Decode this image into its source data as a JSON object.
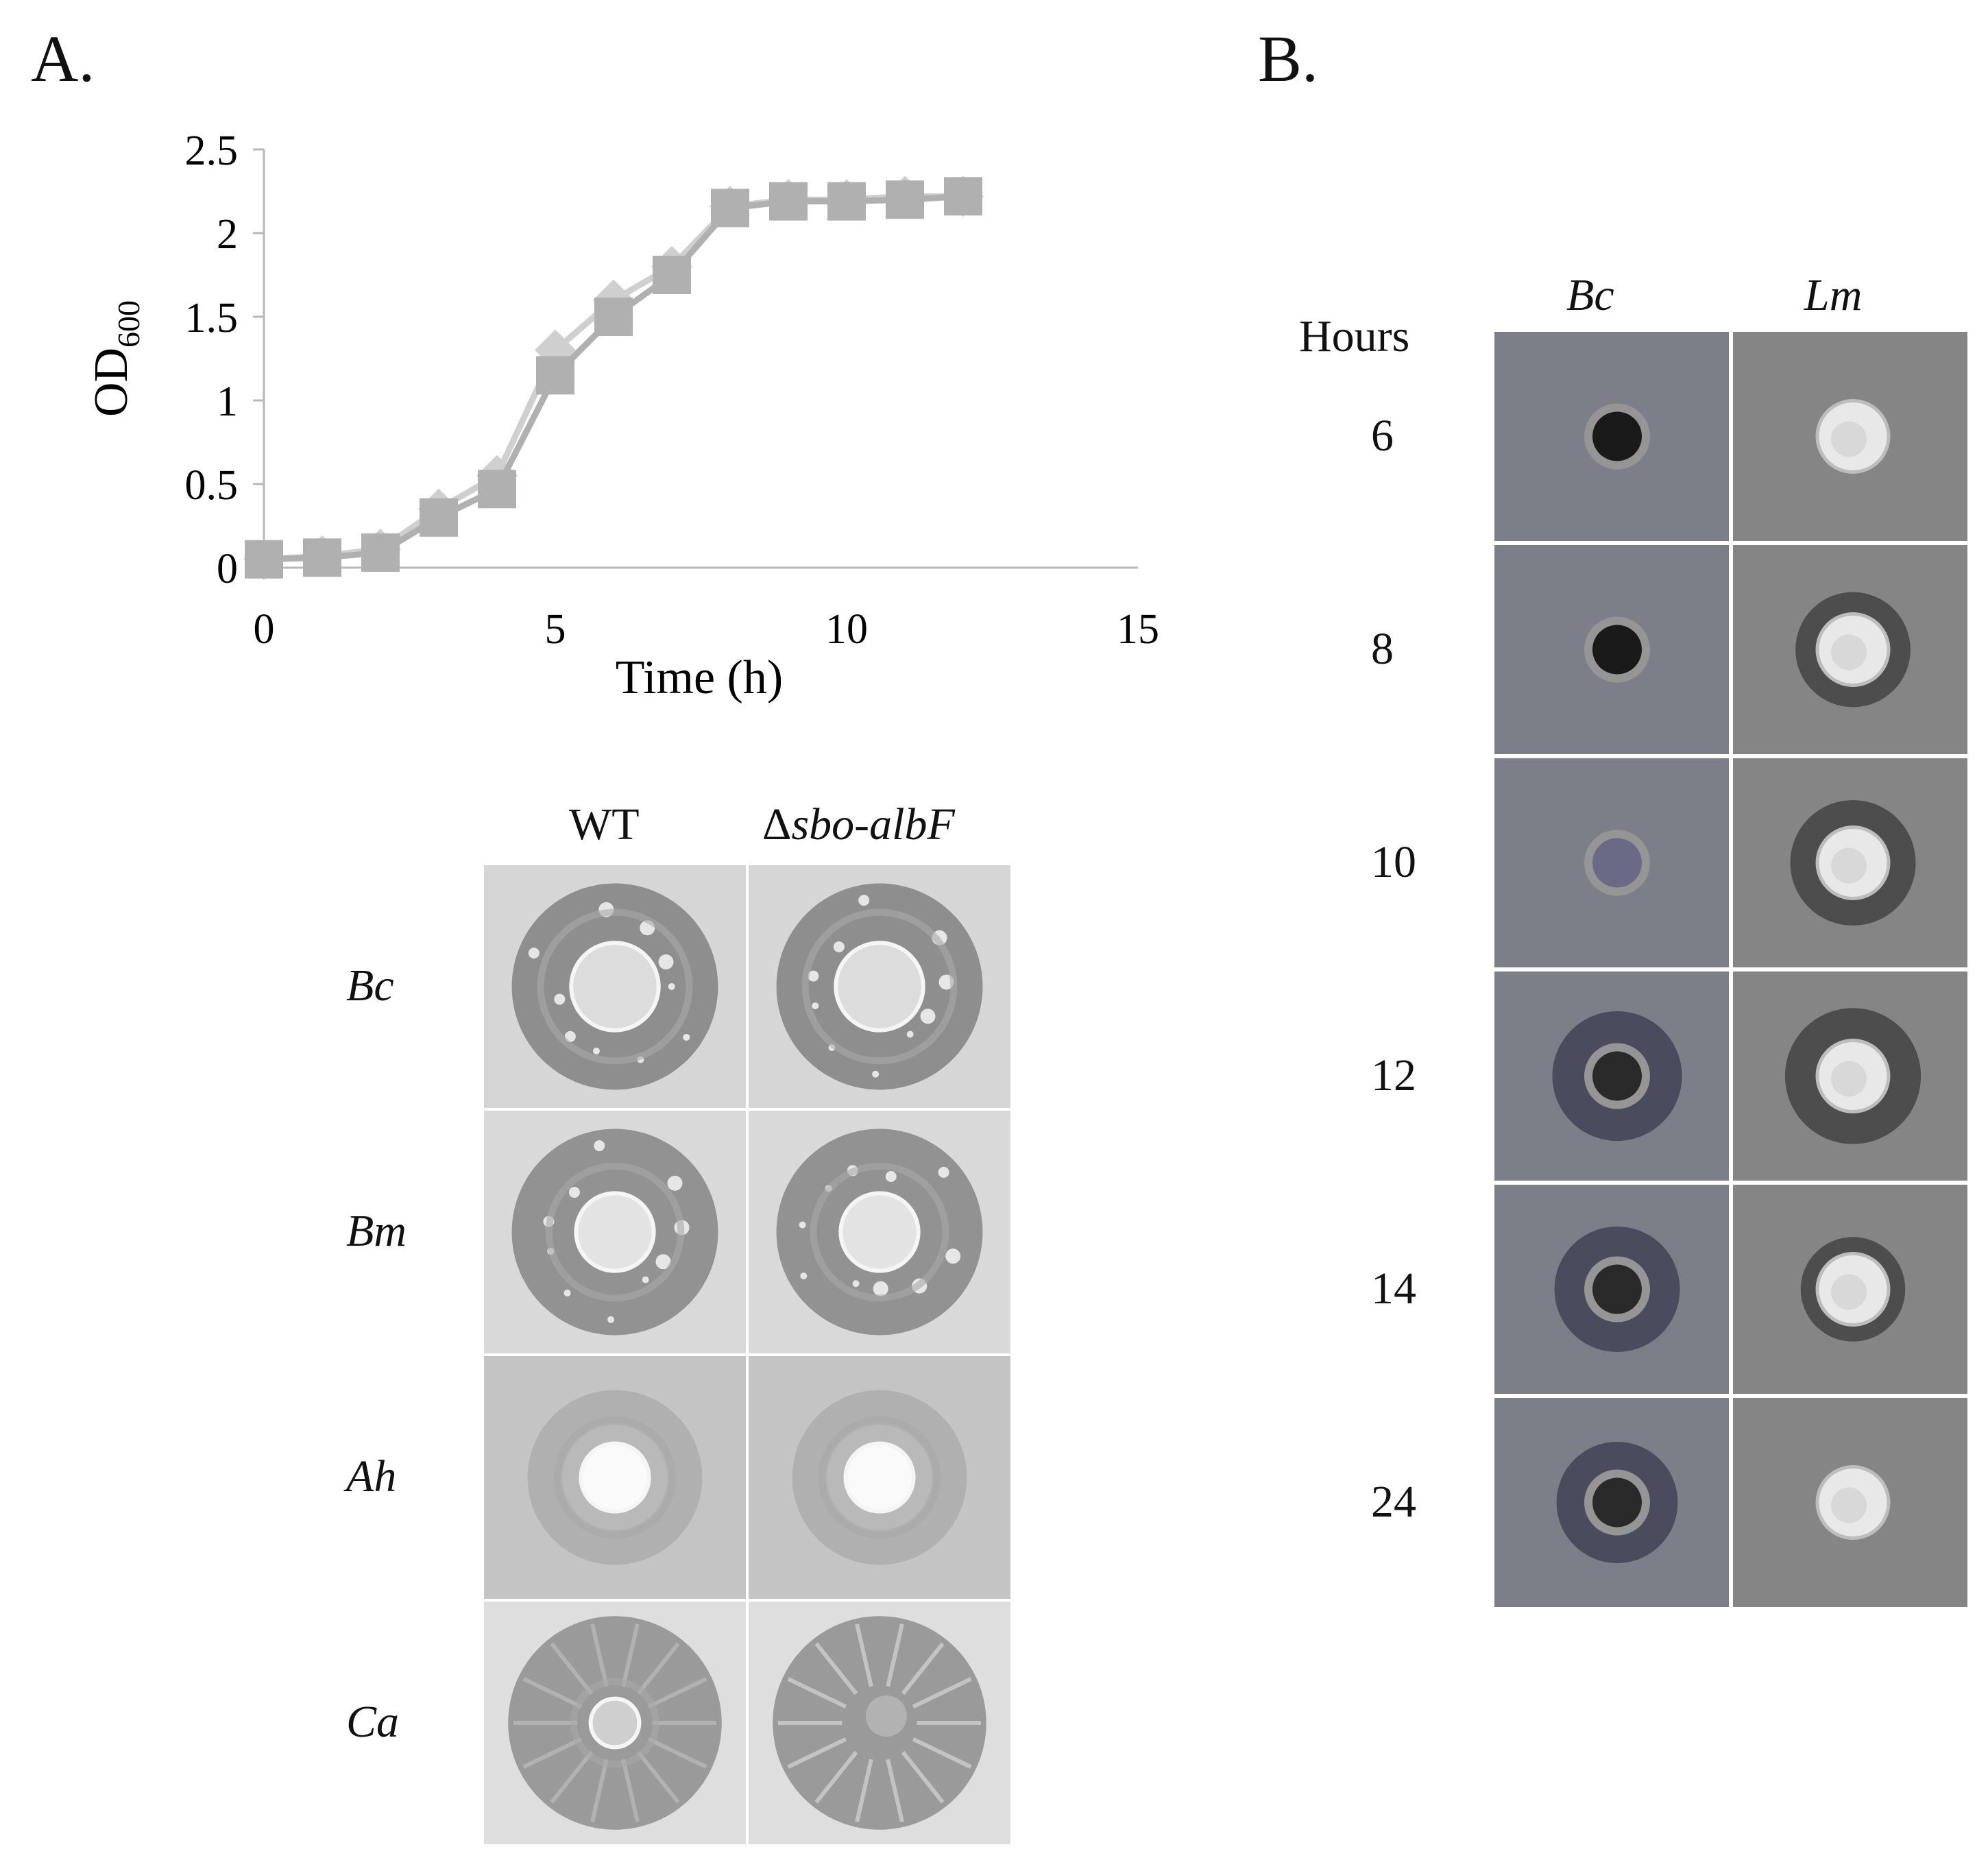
{
  "panel_a": {
    "letter": "A.",
    "chart_data": {
      "type": "line",
      "title": "",
      "xlabel": "Time (h)",
      "ylabel_main": "OD",
      "ylabel_sub": "600",
      "xlim": [
        0,
        15
      ],
      "ylim": [
        0,
        2.5
      ],
      "x_ticks": [
        "0",
        "5",
        "10",
        "15"
      ],
      "y_ticks": [
        "0",
        "0.5",
        "1",
        "1.5",
        "2",
        "2.5"
      ],
      "grid": false,
      "legend": "none",
      "series": [
        {
          "marker": "diamond",
          "color": "#cfcfcf",
          "x": [
            0,
            1,
            2,
            3,
            4,
            5,
            6,
            7,
            8,
            9,
            10,
            11,
            12
          ],
          "y": [
            0.05,
            0.07,
            0.11,
            0.35,
            0.55,
            1.3,
            1.6,
            1.8,
            2.16,
            2.2,
            2.2,
            2.22,
            2.22
          ]
        },
        {
          "marker": "square",
          "color": "#b0b0b0",
          "x": [
            0,
            1,
            2,
            3,
            4,
            5,
            6,
            7,
            8,
            9,
            10,
            11,
            12
          ],
          "y": [
            0.05,
            0.06,
            0.09,
            0.3,
            0.47,
            1.15,
            1.5,
            1.75,
            2.15,
            2.19,
            2.19,
            2.2,
            2.22
          ]
        }
      ]
    },
    "plate_grid": {
      "columns": [
        {
          "label": "WT"
        },
        {
          "delta": "Δ",
          "label": "sbo-albF"
        }
      ],
      "rows": [
        {
          "label": "Bc",
          "zone": 0.85,
          "spot": 0.18,
          "spot_color": "#dcdcdc",
          "lawn": "#8e8e8e",
          "bg": "#d6d6d6"
        },
        {
          "label": "Bm",
          "zone": 0.85,
          "spot": 0.16,
          "spot_color": "#e3e3e3",
          "lawn": "#929292",
          "bg": "#d9d9d9"
        },
        {
          "label": "Ah",
          "zone": 0.72,
          "spot": 0.14,
          "spot_color": "#fafafa",
          "lawn": "#a9a9a9",
          "bg": "#c4c4c4"
        },
        {
          "label": "Ca",
          "zone": 0.88,
          "spot": 0.1,
          "spot_color": "#cfcfcf",
          "lawn": "#9a9a9a",
          "bg": "#dedede"
        }
      ]
    }
  },
  "panel_b": {
    "letter": "B.",
    "row_header": "Hours",
    "columns": [
      {
        "label": "Bc"
      },
      {
        "label": "Lm"
      }
    ],
    "rows": [
      {
        "label": "6",
        "bc_halo": 0.0,
        "lm_halo": 0.0
      },
      {
        "label": "8",
        "bc_halo": 0.0,
        "lm_halo": 0.55
      },
      {
        "label": "10",
        "bc_halo": 0.0,
        "lm_halo": 0.6
      },
      {
        "label": "12",
        "bc_halo": 0.62,
        "lm_halo": 0.65
      },
      {
        "label": "14",
        "bc_halo": 0.6,
        "lm_halo": 0.5
      },
      {
        "label": "24",
        "bc_halo": 0.58,
        "lm_halo": 0.0
      }
    ]
  }
}
